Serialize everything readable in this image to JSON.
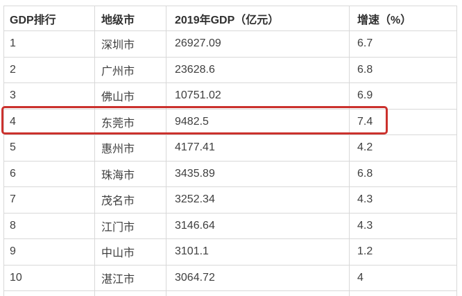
{
  "chart_data": {
    "type": "table",
    "title": "",
    "columns": [
      "GDP排行",
      "地级市",
      "2019年GDP（亿元）",
      "增速（%）"
    ],
    "rows": [
      [
        "1",
        "深圳市",
        "26927.09",
        "6.7"
      ],
      [
        "2",
        "广州市",
        "23628.6",
        "6.8"
      ],
      [
        "3",
        "佛山市",
        "10751.02",
        "6.9"
      ],
      [
        "4",
        "东莞市",
        "9482.5",
        "7.4"
      ],
      [
        "5",
        "惠州市",
        "4177.41",
        "4.2"
      ],
      [
        "6",
        "珠海市",
        "3435.89",
        "6.8"
      ],
      [
        "7",
        "茂名市",
        "3252.34",
        "4.3"
      ],
      [
        "8",
        "江门市",
        "3146.64",
        "4.3"
      ],
      [
        "9",
        "中山市",
        "3101.1",
        "1.2"
      ],
      [
        "10",
        "湛江市",
        "3064.72",
        "4"
      ]
    ],
    "highlighted_row": {
      "rank": "4",
      "city": "东莞市",
      "style": "red-outline-box"
    },
    "layout": {
      "grid": "on",
      "header_bold": true,
      "bottom_row_cut_off": true
    }
  },
  "colors": {
    "highlight_border": "#cb312d",
    "grid_border": "#d8d8d8",
    "header_text": "#303030",
    "body_text": "#3e3e3e",
    "background": "#ffffff"
  }
}
